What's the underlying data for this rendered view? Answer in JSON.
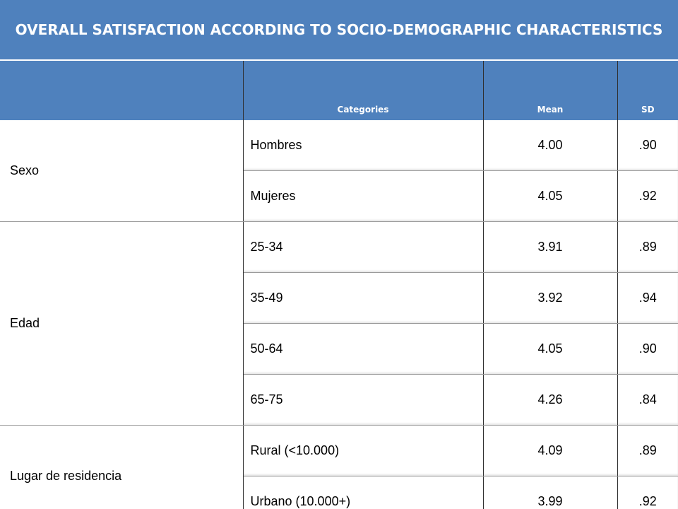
{
  "title": "OVERALL SATISFACTION ACCORDING TO SOCIO-DEMOGRAPHIC CHARACTERISTICS",
  "columns": [
    "",
    "Categories",
    "Mean",
    "SD"
  ],
  "groups": [
    {
      "name": "Sexo",
      "rows": [
        {
          "category": "Hombres",
          "mean": "4.00",
          "sd": ".90"
        },
        {
          "category": "Mujeres",
          "mean": "4.05",
          "sd": ".92"
        }
      ]
    },
    {
      "name": "Edad",
      "rows": [
        {
          "category": "25-34",
          "mean": "3.91",
          "sd": ".89"
        },
        {
          "category": "35-49",
          "mean": "3.92",
          "sd": ".94"
        },
        {
          "category": "50-64",
          "mean": "4.05",
          "sd": ".90"
        },
        {
          "category": "65-75",
          "mean": "4.26",
          "sd": ".84"
        }
      ]
    },
    {
      "name": "Lugar de residencia",
      "rows": [
        {
          "category": "Rural  (<10.000)",
          "mean": "4.09",
          "sd": ".89"
        },
        {
          "category": "Urbano (10.000+)",
          "mean": "3.99",
          "sd": ".92"
        }
      ]
    }
  ],
  "colors": {
    "header_bg": "#4f81bd",
    "header_text": "#ffffff"
  }
}
